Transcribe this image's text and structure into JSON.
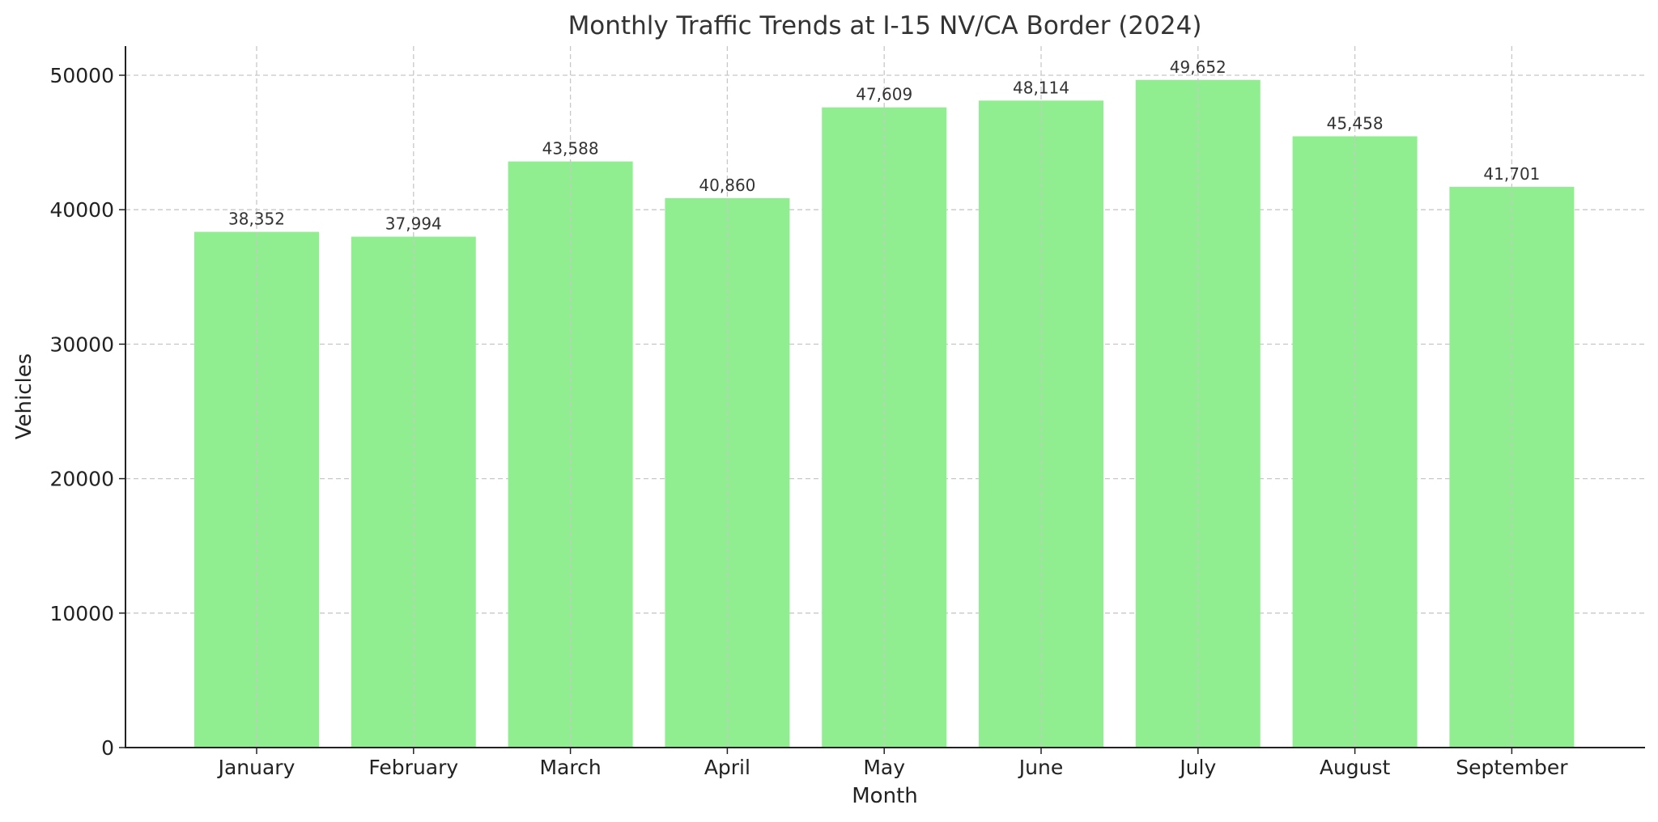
{
  "chart_data": {
    "type": "bar",
    "title": "Monthly Traffic Trends at I-15 NV/CA Border (2024)",
    "xlabel": "Month",
    "ylabel": "Vehicles",
    "categories": [
      "January",
      "February",
      "March",
      "April",
      "May",
      "June",
      "July",
      "August",
      "September"
    ],
    "values": [
      38352,
      37994,
      43588,
      40860,
      47609,
      48114,
      49652,
      45458,
      41701
    ],
    "data_labels": [
      "38,352",
      "37,994",
      "43,588",
      "40,860",
      "47,609",
      "48,114",
      "49,652",
      "45,458",
      "41,701"
    ],
    "yticks": [
      0,
      10000,
      20000,
      30000,
      40000,
      50000
    ],
    "ytick_labels": [
      "0",
      "10000",
      "20000",
      "30000",
      "40000",
      "50000"
    ],
    "ylim": [
      0,
      52135
    ],
    "grid": true,
    "bar_color": "#90ee90"
  }
}
